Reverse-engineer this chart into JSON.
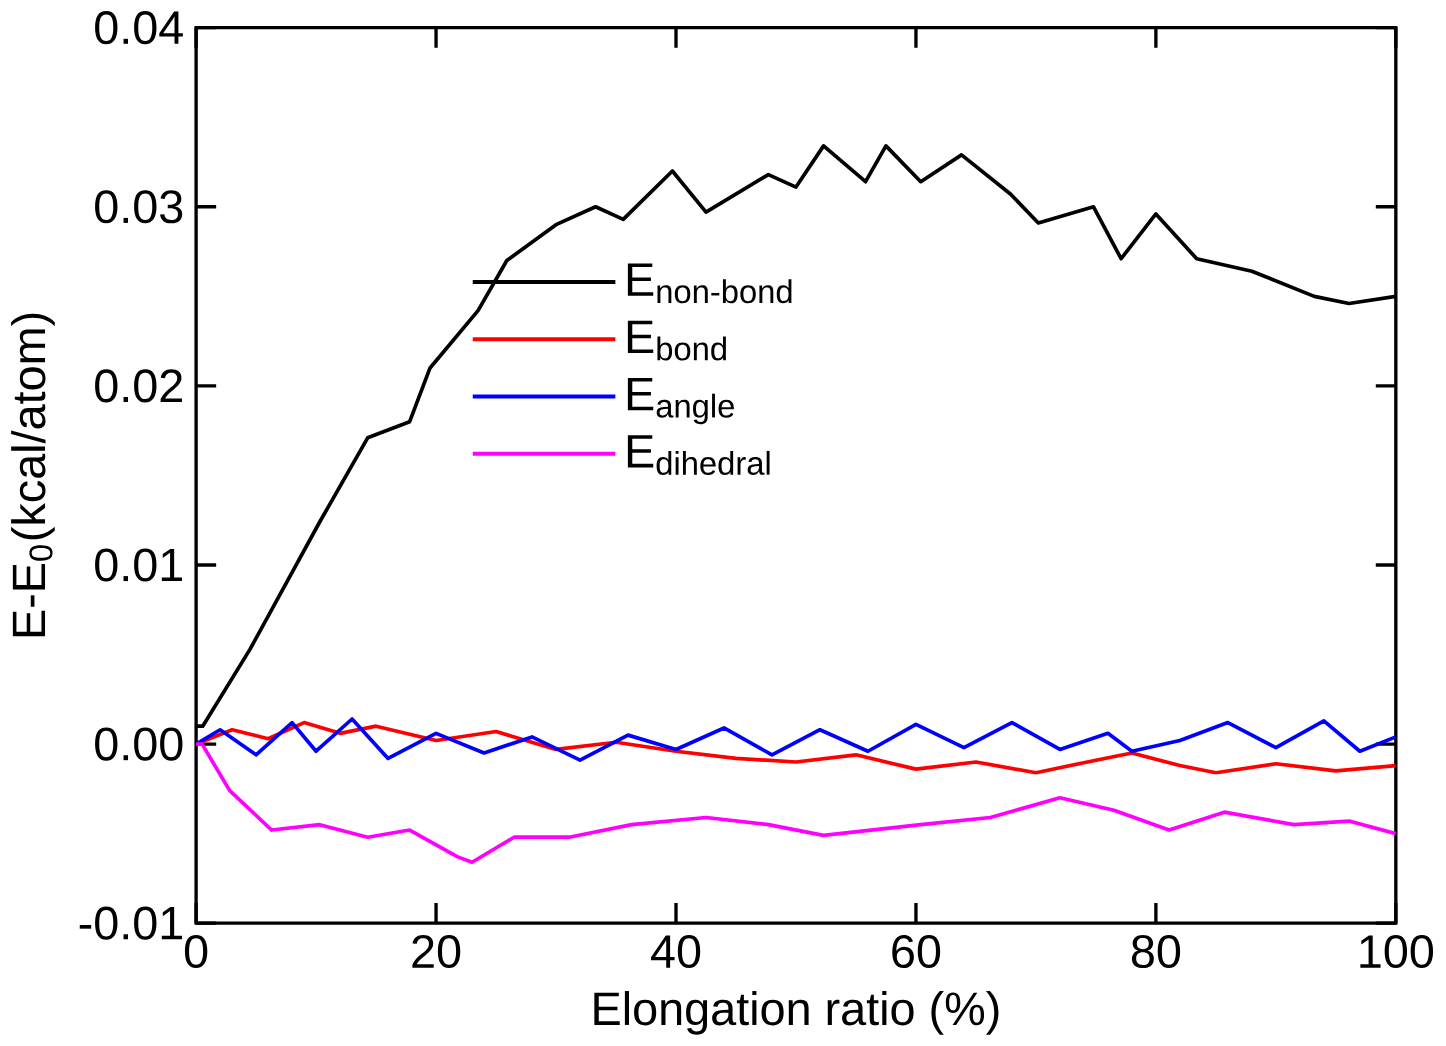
{
  "chart_data": {
    "type": "line",
    "xlabel": "Elongation ratio (%)",
    "ylabel": "E-E$_{0}$(kcal/atom)",
    "xlim": [
      0,
      100
    ],
    "ylim": [
      -0.01,
      0.04
    ],
    "xticks": [
      0,
      20,
      40,
      60,
      80,
      100
    ],
    "yticks": [
      -0.01,
      {
        "value": 0,
        "label": "0.00"
      },
      0.01,
      0.02,
      0.03,
      0.04
    ],
    "legend": "left",
    "grid": false,
    "marker": "none",
    "line_style": "solid",
    "series": [
      {
        "name": "E$_{non-bond}$",
        "color": "#000000",
        "x": [
          0,
          0.55,
          4.5,
          10.3,
          14.3,
          17.8,
          19.5,
          23.5,
          25.9,
          30,
          33.3,
          35.6,
          39.7,
          42.5,
          47.7,
          50,
          52.3,
          55.8,
          57.5,
          60.4,
          63.8,
          67.9,
          70.2,
          74.8,
          77.1,
          80,
          83.4,
          88,
          93.2,
          96.1,
          100
        ],
        "values": [
          0.001,
          0.001,
          0.0053,
          0.0124,
          0.0171,
          0.018,
          0.021,
          0.0242,
          0.027,
          0.029,
          0.03,
          0.0293,
          0.032,
          0.0297,
          0.0318,
          0.0311,
          0.0334,
          0.0314,
          0.0334,
          0.0314,
          0.0329,
          0.0307,
          0.0291,
          0.03,
          0.0271,
          0.0296,
          0.0271,
          0.0264,
          0.025,
          0.0246,
          0.025
        ]
      },
      {
        "name": "E$_{bond}$",
        "color": "#ff0000",
        "x": [
          0,
          3,
          6,
          9,
          12,
          15,
          20,
          25,
          30,
          35,
          40,
          45,
          50,
          55,
          60,
          65,
          70,
          75,
          78,
          82,
          85,
          90,
          95,
          100
        ],
        "values": [
          0,
          0.0008,
          0.0003,
          0.0012,
          0.0006,
          0.001,
          0.0002,
          0.0007,
          -0.0003,
          0.0001,
          -0.0004,
          -0.0008,
          -0.001,
          -0.0006,
          -0.0014,
          -0.001,
          -0.0016,
          -0.0009,
          -0.0005,
          -0.0012,
          -0.0016,
          -0.0011,
          -0.0015,
          -0.0012
        ]
      },
      {
        "name": "E$_{angle}$",
        "color": "#0000ff",
        "x": [
          0,
          2,
          5,
          8,
          10,
          13,
          16,
          20,
          24,
          28,
          32,
          36,
          40,
          44,
          48,
          52,
          56,
          60,
          64,
          68,
          72,
          76,
          78,
          82,
          86,
          90,
          94,
          97,
          100
        ],
        "values": [
          0,
          0.0008,
          -0.0006,
          0.0012,
          -0.0004,
          0.0014,
          -0.0008,
          0.0006,
          -0.0005,
          0.0004,
          -0.0009,
          0.0005,
          -0.0003,
          0.0009,
          -0.0006,
          0.0008,
          -0.0004,
          0.0011,
          -0.0002,
          0.0012,
          -0.0003,
          0.0006,
          -0.0004,
          0.0002,
          0.0012,
          -0.0002,
          0.0013,
          -0.0004,
          0.0004
        ]
      },
      {
        "name": "E$_{dihedral}$",
        "color": "#ff00ff",
        "x": [
          0,
          0.5,
          2.8,
          6.3,
          10.3,
          14.3,
          17.8,
          21.8,
          23,
          26.5,
          31.1,
          36.3,
          42.5,
          47.7,
          52.3,
          60.4,
          66.2,
          72,
          76.5,
          81.1,
          85.7,
          91.5,
          96.1,
          100
        ],
        "values": [
          0,
          0,
          -0.0026,
          -0.0048,
          -0.0045,
          -0.0052,
          -0.0048,
          -0.0063,
          -0.0066,
          -0.0052,
          -0.0052,
          -0.0045,
          -0.0041,
          -0.0045,
          -0.0051,
          -0.0045,
          -0.0041,
          -0.003,
          -0.0037,
          -0.0048,
          -0.0038,
          -0.0045,
          -0.0043,
          -0.005
        ]
      }
    ]
  }
}
